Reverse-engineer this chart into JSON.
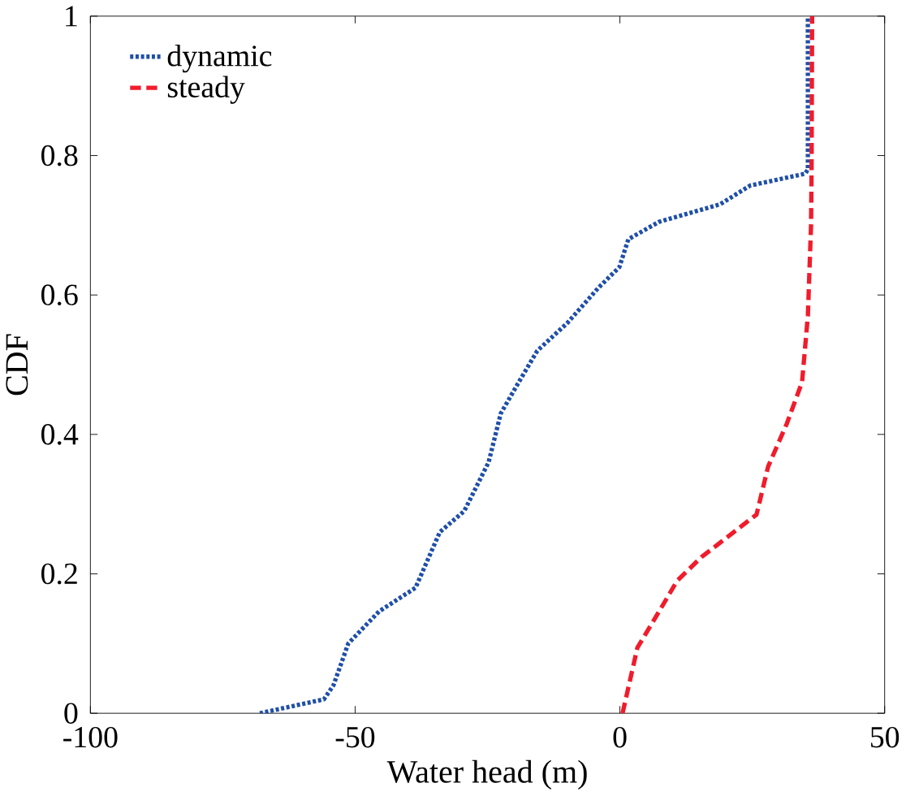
{
  "chart_data": {
    "type": "line",
    "xlabel": "Water head (m)",
    "ylabel": "CDF",
    "xlim": [
      -100,
      50
    ],
    "ylim": [
      0,
      1
    ],
    "xticks": [
      -100,
      -50,
      0,
      50
    ],
    "yticks": [
      0,
      0.2,
      0.4,
      0.6,
      0.8,
      1
    ],
    "grid": false,
    "legend": "top left",
    "marker": "none",
    "series": [
      {
        "name": "dynamic",
        "color": "#1f4fa8",
        "line_style": "dotted",
        "x": [
          -68,
          -55.9,
          -54.1,
          -51.3,
          -45.5,
          -38.6,
          -34,
          -29.4,
          -24.8,
          -22.5,
          -19.1,
          -15.6,
          -9.9,
          -4.1,
          -0.1,
          1.6,
          7.4,
          18.9,
          24.6,
          35,
          35.5,
          35.5
        ],
        "values": [
          0,
          0.02,
          0.04,
          0.1,
          0.146,
          0.18,
          0.26,
          0.29,
          0.36,
          0.43,
          0.475,
          0.52,
          0.56,
          0.61,
          0.64,
          0.68,
          0.705,
          0.73,
          0.757,
          0.774,
          0.78,
          1
        ]
      },
      {
        "name": "steady",
        "color": "#f01c2c",
        "line_style": "dashed",
        "x": [
          0.5,
          3.3,
          7.4,
          10.8,
          15.4,
          25.8,
          28,
          31.5,
          34.4,
          35.5,
          36.1,
          36.2,
          36.3
        ],
        "values": [
          0,
          0.094,
          0.146,
          0.19,
          0.224,
          0.285,
          0.354,
          0.415,
          0.475,
          0.57,
          0.7,
          0.78,
          1
        ]
      }
    ]
  }
}
